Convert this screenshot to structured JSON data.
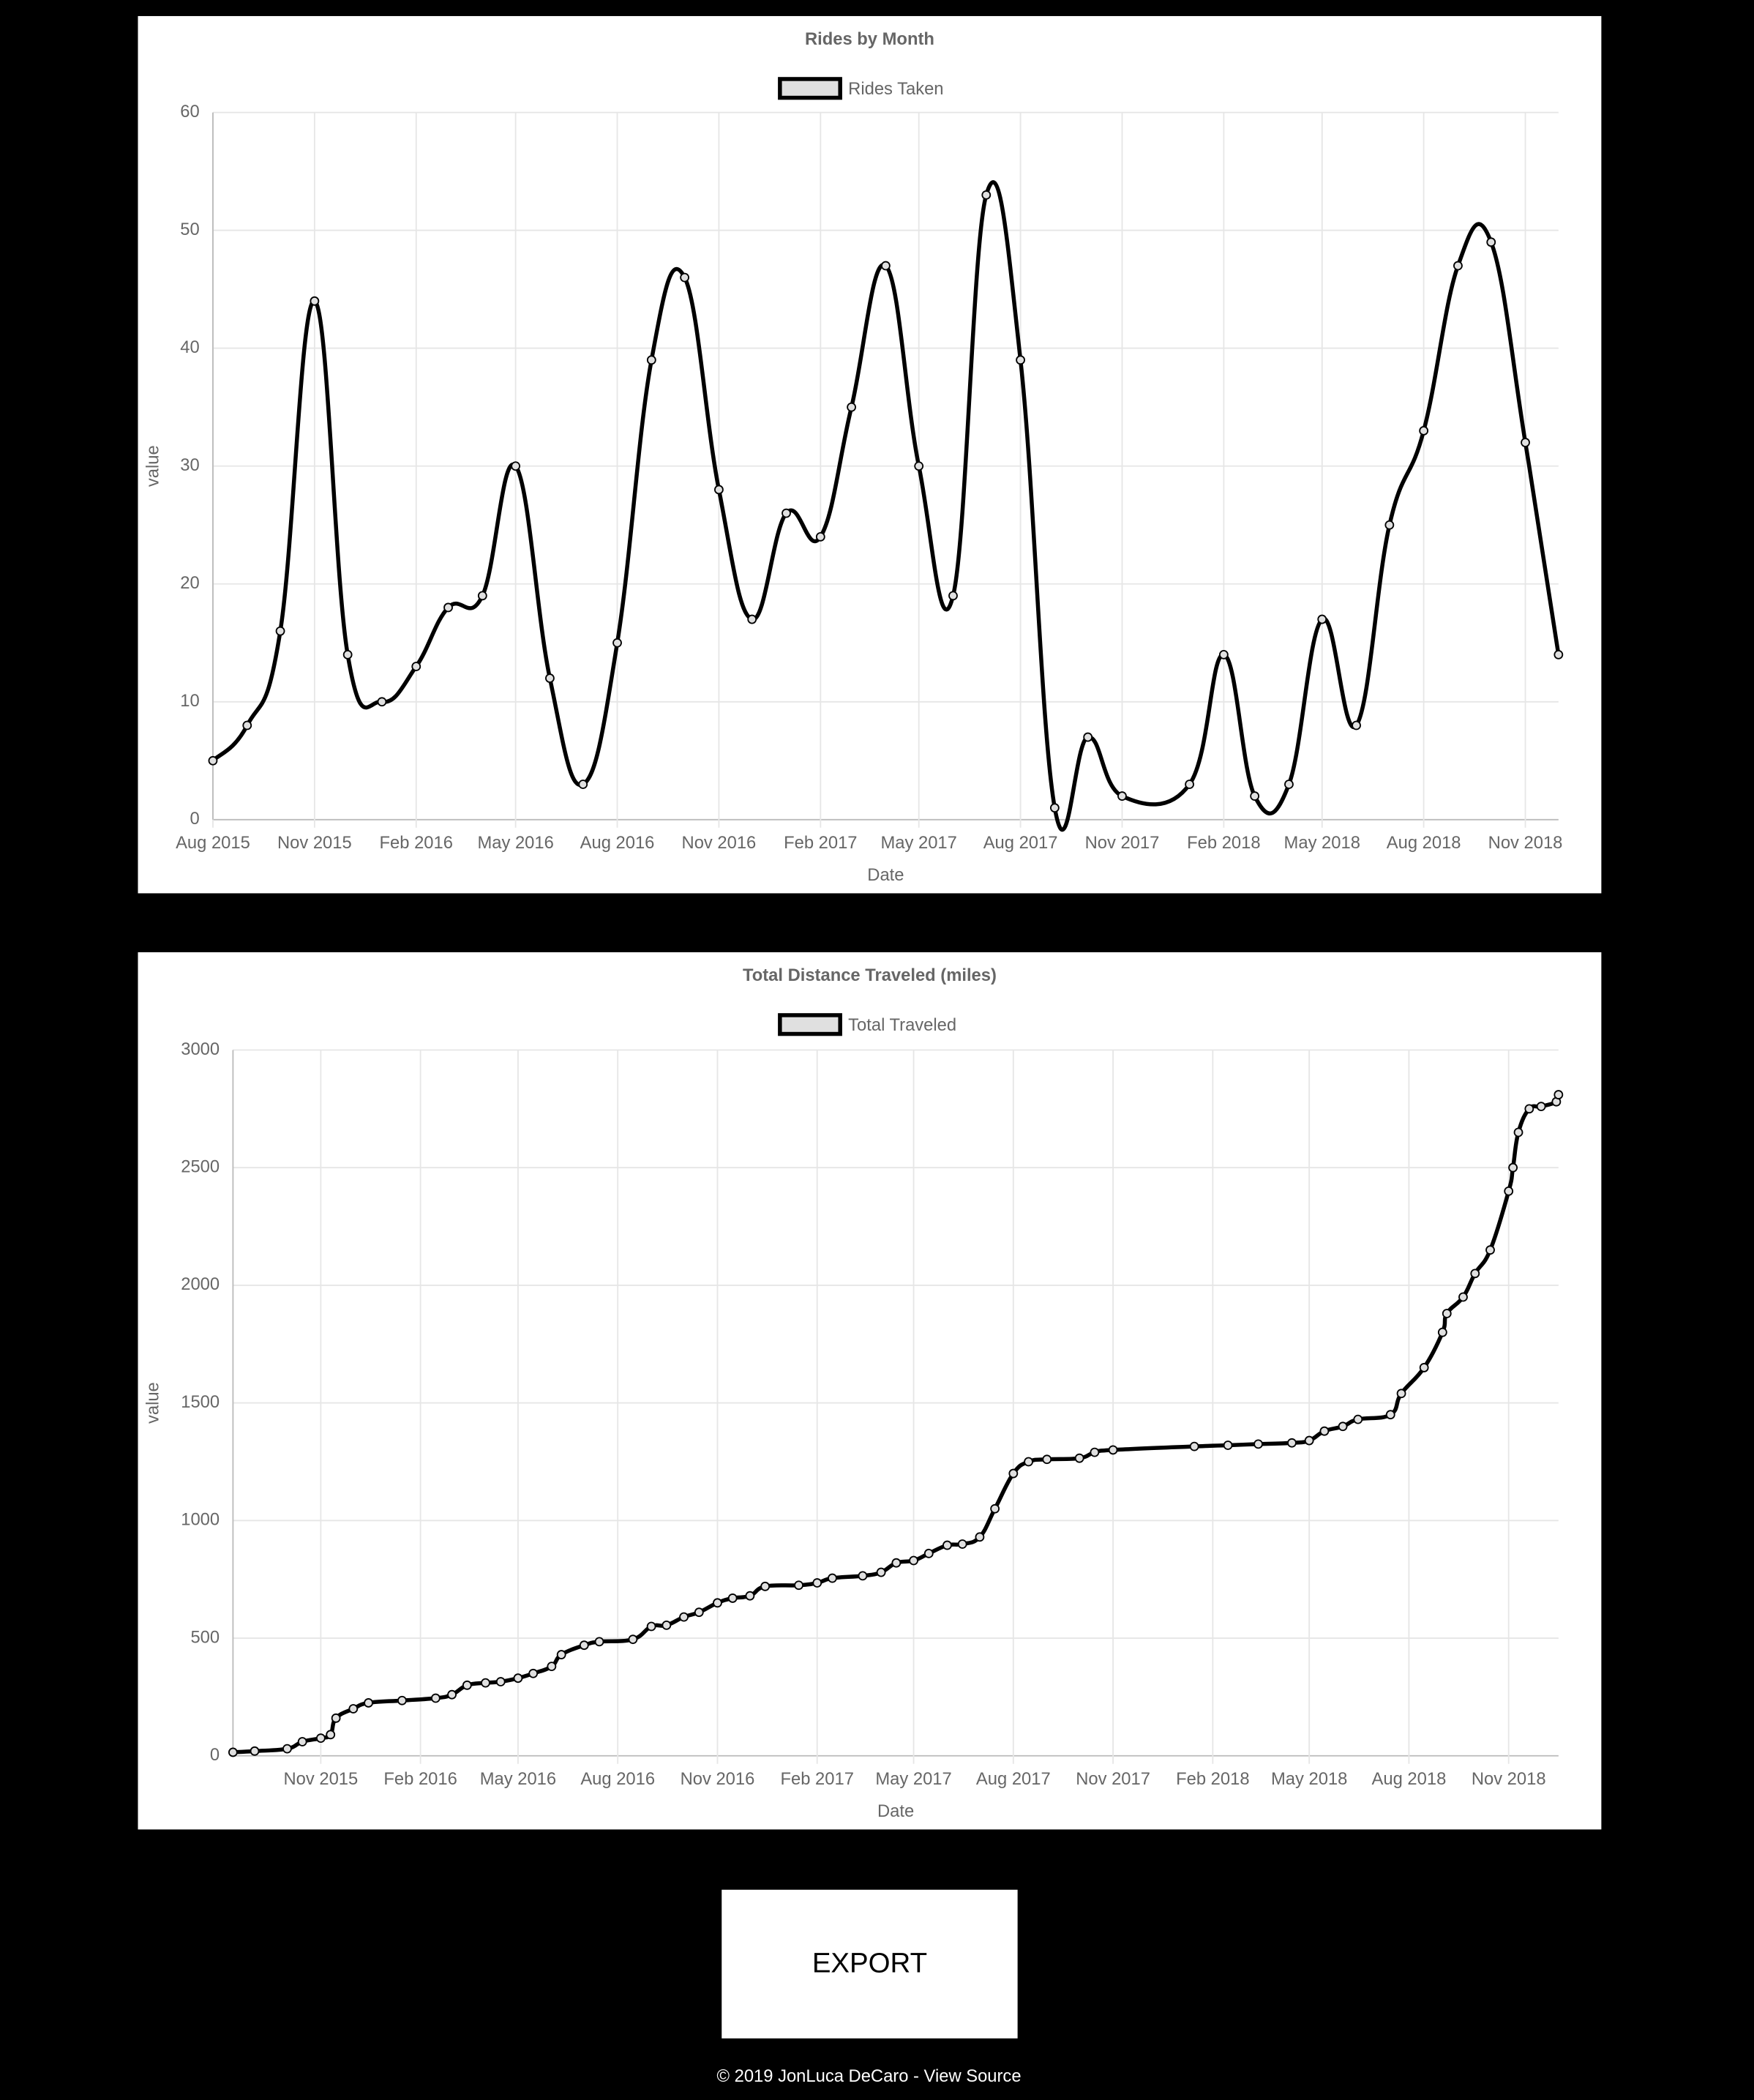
{
  "chart_data": [
    {
      "type": "line",
      "title": "Rides by Month",
      "x_label": "Date",
      "y_label": "value",
      "x": [
        "2015-08",
        "2015-09",
        "2015-10",
        "2015-11",
        "2015-12",
        "2016-01",
        "2016-02",
        "2016-03",
        "2016-04",
        "2016-05",
        "2016-06",
        "2016-07",
        "2016-08",
        "2016-09",
        "2016-10",
        "2016-11",
        "2016-12",
        "2017-01",
        "2017-02",
        "2017-03",
        "2017-04",
        "2017-05",
        "2017-06",
        "2017-07",
        "2017-08",
        "2017-09",
        "2017-10",
        "2017-11",
        "2018-01",
        "2018-02",
        "2018-03",
        "2018-04",
        "2018-05",
        "2018-06",
        "2018-07",
        "2018-08",
        "2018-09",
        "2018-10",
        "2018-11",
        "2018-12"
      ],
      "series": [
        {
          "name": "Rides Taken",
          "color": "#000000",
          "fill_color": "#e0e0e0",
          "values": [
            5,
            8,
            16,
            44,
            14,
            10,
            13,
            18,
            19,
            30,
            12,
            3,
            15,
            39,
            46,
            28,
            17,
            26,
            24,
            35,
            47,
            30,
            19,
            53,
            39,
            1,
            7,
            2,
            3,
            14,
            2,
            3,
            17,
            8,
            25,
            33,
            47,
            49,
            32,
            14
          ]
        }
      ],
      "xlim": [
        "2015-08",
        "2018-12"
      ],
      "xticks": [
        {
          "value": "2015-08",
          "label": "Aug 2015"
        },
        {
          "value": "2015-11",
          "label": "Nov 2015"
        },
        {
          "value": "2016-02",
          "label": "Feb 2016"
        },
        {
          "value": "2016-05",
          "label": "May 2016"
        },
        {
          "value": "2016-08",
          "label": "Aug 2016"
        },
        {
          "value": "2016-11",
          "label": "Nov 2016"
        },
        {
          "value": "2017-02",
          "label": "Feb 2017"
        },
        {
          "value": "2017-05",
          "label": "May 2017"
        },
        {
          "value": "2017-08",
          "label": "Aug 2017"
        },
        {
          "value": "2017-11",
          "label": "Nov 2017"
        },
        {
          "value": "2018-02",
          "label": "Feb 2018"
        },
        {
          "value": "2018-05",
          "label": "May 2018"
        },
        {
          "value": "2018-08",
          "label": "Aug 2018"
        },
        {
          "value": "2018-11",
          "label": "Nov 2018"
        }
      ],
      "ylim": [
        0,
        60
      ],
      "yticks": [
        0,
        10,
        20,
        30,
        40,
        50,
        60
      ],
      "grid": true
    },
    {
      "type": "line",
      "title": "Total Distance Traveled (miles)",
      "x_label": "Date",
      "y_label": "value",
      "x": [
        "2015-08-12",
        "2015-09-01",
        "2015-10-01",
        "2015-10-15",
        "2015-11-01",
        "2015-11-10",
        "2015-11-15",
        "2015-12-01",
        "2015-12-15",
        "2016-01-15",
        "2016-02-15",
        "2016-03-01",
        "2016-03-15",
        "2016-04-01",
        "2016-04-15",
        "2016-05-01",
        "2016-05-15",
        "2016-06-01",
        "2016-06-10",
        "2016-07-01",
        "2016-07-15",
        "2016-08-15",
        "2016-09-01",
        "2016-09-15",
        "2016-10-01",
        "2016-10-15",
        "2016-11-01",
        "2016-11-15",
        "2016-12-01",
        "2016-12-15",
        "2017-01-15",
        "2017-02-01",
        "2017-02-15",
        "2017-03-15",
        "2017-04-01",
        "2017-04-15",
        "2017-05-01",
        "2017-05-15",
        "2017-06-01",
        "2017-06-15",
        "2017-07-01",
        "2017-07-15",
        "2017-08-01",
        "2017-08-15",
        "2017-09-01",
        "2017-10-01",
        "2017-10-15",
        "2017-11-01",
        "2018-01-15",
        "2018-02-15",
        "2018-03-15",
        "2018-04-15",
        "2018-05-01",
        "2018-05-15",
        "2018-06-01",
        "2018-06-15",
        "2018-07-15",
        "2018-07-25",
        "2018-08-15",
        "2018-09-01",
        "2018-09-05",
        "2018-09-20",
        "2018-10-01",
        "2018-10-15",
        "2018-11-01",
        "2018-11-05",
        "2018-11-10",
        "2018-11-20",
        "2018-12-01",
        "2018-12-15",
        "2018-12-17"
      ],
      "series": [
        {
          "name": "Total Traveled",
          "color": "#000000",
          "fill_color": "#e0e0e0",
          "values": [
            15,
            20,
            30,
            60,
            75,
            90,
            160,
            200,
            225,
            235,
            245,
            260,
            300,
            310,
            315,
            330,
            350,
            380,
            430,
            470,
            485,
            495,
            550,
            555,
            590,
            610,
            650,
            670,
            680,
            720,
            725,
            735,
            755,
            765,
            780,
            820,
            830,
            860,
            895,
            900,
            930,
            1050,
            1200,
            1250,
            1260,
            1265,
            1290,
            1300,
            1315,
            1320,
            1325,
            1330,
            1340,
            1380,
            1400,
            1430,
            1450,
            1540,
            1650,
            1800,
            1880,
            1950,
            2050,
            2150,
            2400,
            2500,
            2650,
            2750,
            2760,
            2780,
            2810
          ]
        }
      ],
      "xlim": [
        "2015-08-12",
        "2018-12-17"
      ],
      "xticks": [
        {
          "value": "2015-11",
          "label": "Nov 2015"
        },
        {
          "value": "2016-02",
          "label": "Feb 2016"
        },
        {
          "value": "2016-05",
          "label": "May 2016"
        },
        {
          "value": "2016-08",
          "label": "Aug 2016"
        },
        {
          "value": "2016-11",
          "label": "Nov 2016"
        },
        {
          "value": "2017-02",
          "label": "Feb 2017"
        },
        {
          "value": "2017-05",
          "label": "May 2017"
        },
        {
          "value": "2017-08",
          "label": "Aug 2017"
        },
        {
          "value": "2017-11",
          "label": "Nov 2017"
        },
        {
          "value": "2018-02",
          "label": "Feb 2018"
        },
        {
          "value": "2018-05",
          "label": "May 2018"
        },
        {
          "value": "2018-08",
          "label": "Aug 2018"
        },
        {
          "value": "2018-11",
          "label": "Nov 2018"
        }
      ],
      "ylim": [
        0,
        3000
      ],
      "yticks": [
        0,
        500,
        1000,
        1500,
        2000,
        2500,
        3000
      ],
      "grid": true
    }
  ],
  "button": {
    "label": "EXPORT"
  },
  "footer": {
    "text": "© 2019 JonLuca DeCaro - ",
    "link": "View Source"
  }
}
